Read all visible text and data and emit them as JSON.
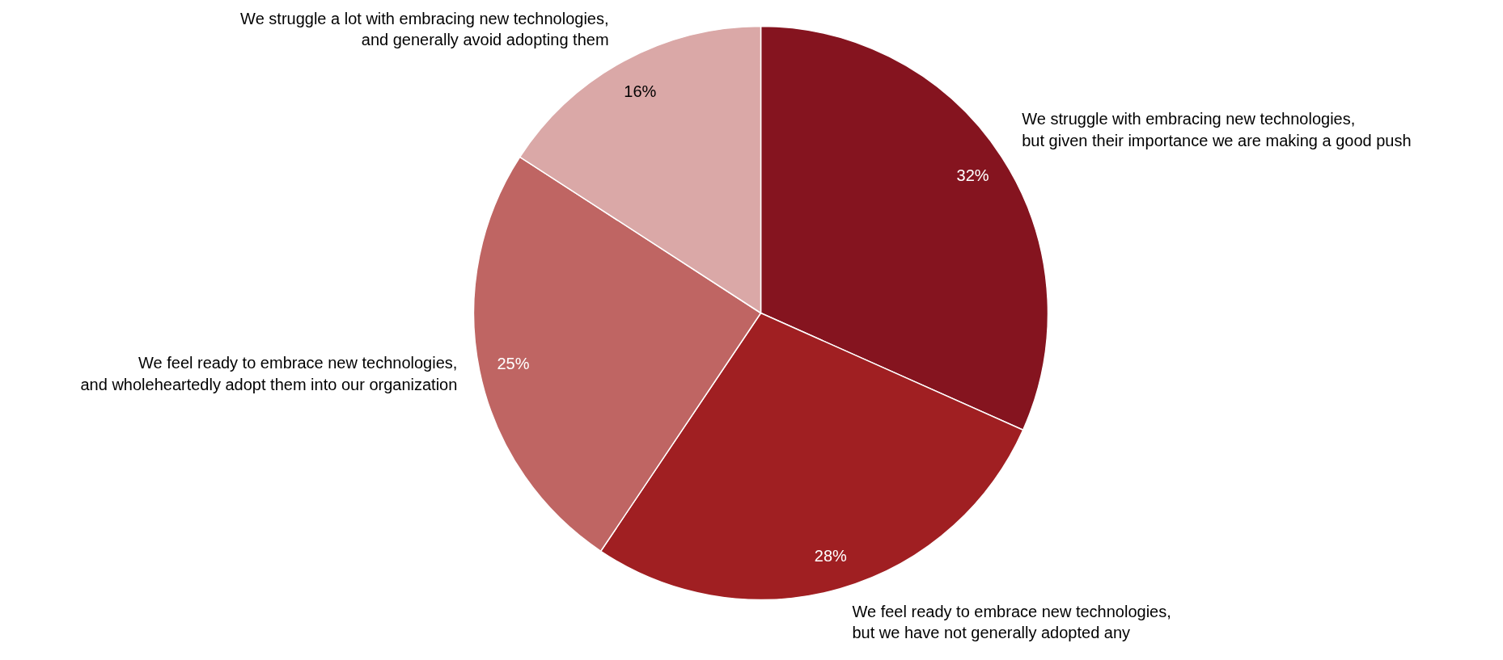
{
  "chart_data": {
    "type": "pie",
    "categories": [
      "We struggle with embracing new technologies,\nbut given their importance we are making a good push",
      "We feel ready to embrace new technologies,\nbut we have not generally adopted any",
      "We feel ready to embrace new technologies,\nand wholeheartedly adopt them into our organization",
      "We struggle a lot with embracing new technologies,\nand generally avoid adopting them"
    ],
    "values": [
      32,
      28,
      25,
      16
    ],
    "colors": [
      "#85141f",
      "#a01f22",
      "#bf6563",
      "#daa8a7"
    ],
    "value_labels": [
      "32%",
      "28%",
      "25%",
      "16%"
    ]
  }
}
